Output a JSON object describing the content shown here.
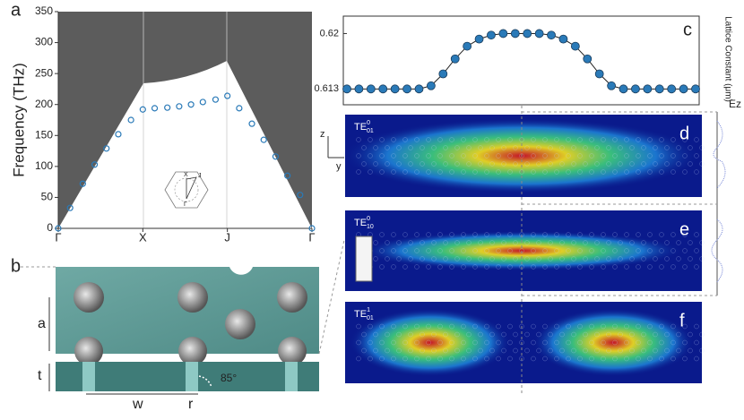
{
  "panel_labels": [
    "a",
    "b",
    "c",
    "d",
    "e",
    "f"
  ],
  "chart_data": [
    {
      "type": "scatter",
      "y_label": "Frequency (THz)",
      "color": "#2a7ab8",
      "x": [
        0,
        0.14,
        0.29,
        0.43,
        0.57,
        0.71,
        0.86,
        1,
        1.14,
        1.29,
        1.43,
        1.57,
        1.71,
        1.86,
        2,
        2.14,
        2.29,
        2.43,
        2.57,
        2.71,
        2.86,
        3
      ],
      "values": [
        0,
        33,
        72,
        103,
        129,
        152,
        175,
        192,
        194,
        195,
        197,
        200,
        204,
        208,
        214,
        194,
        169,
        143,
        116,
        85,
        54,
        0
      ],
      "xlim": [
        0,
        3
      ],
      "xticks": [
        {
          "value": 0,
          "label": "Γ"
        },
        {
          "value": 1,
          "label": "X"
        },
        {
          "value": 2,
          "label": "J"
        },
        {
          "value": 3,
          "label": "Γ"
        }
      ],
      "ylim": [
        0,
        350
      ],
      "yticks": [
        0,
        50,
        100,
        150,
        200,
        250,
        300,
        350
      ],
      "inset_labels": [
        "X",
        "J",
        "Γ"
      ]
    },
    {
      "type": "line",
      "y_label": "Lattice Constant (μm)",
      "color": "#2a7ab8",
      "values": [
        0.613,
        0.613,
        0.613,
        0.613,
        0.613,
        0.613,
        0.613,
        0.6134,
        0.6149,
        0.6168,
        0.6184,
        0.6193,
        0.6198,
        0.62,
        0.62,
        0.62,
        0.62,
        0.6198,
        0.6193,
        0.6184,
        0.6168,
        0.6149,
        0.6134,
        0.613,
        0.613,
        0.613,
        0.613,
        0.613,
        0.613,
        0.613
      ],
      "ylim": [
        0.611,
        0.6222
      ],
      "yticks": [
        0.613,
        0.62
      ]
    }
  ],
  "field_maps": [
    {
      "base": "TE",
      "sub": "01",
      "sup": "0"
    },
    {
      "base": "TE",
      "sub": "10",
      "sup": "0"
    },
    {
      "base": "TE",
      "sub": "01",
      "sup": "1"
    }
  ],
  "axes_labels": {
    "z": "z",
    "y": "y",
    "field": "Ez"
  },
  "geometry_labels": {
    "a": "a",
    "t": "t",
    "w": "w",
    "r": "r",
    "angle": "85°"
  }
}
